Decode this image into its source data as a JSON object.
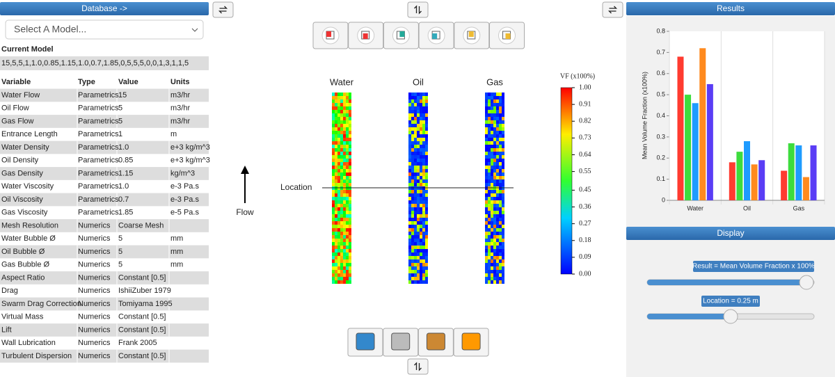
{
  "left": {
    "header": "Database ->",
    "select": "Select A Model...",
    "current_model_label": "Current Model",
    "current_model": "15,5,5,1,1.0,0.85,1.15,1.0,0.7,1.85,0,5,5,5,0,0,1,3,1,1,5"
  },
  "table": {
    "columns": [
      "Variable",
      "Type",
      "Value",
      "Units"
    ],
    "rows": [
      [
        "Water Flow",
        "Parametrics",
        "15",
        "m3/hr"
      ],
      [
        "Oil Flow",
        "Parametrics",
        "5",
        "m3/hr"
      ],
      [
        "Gas Flow",
        "Parametrics",
        "5",
        "m3/hr"
      ],
      [
        "Entrance Length",
        "Parametrics",
        "1",
        "m"
      ],
      [
        "Water Density",
        "Parametrics",
        "1.0",
        "e+3 kg/m^3"
      ],
      [
        "Oil Density",
        "Parametrics",
        "0.85",
        "e+3 kg/m^3"
      ],
      [
        "Gas Density",
        "Parametrics",
        "1.15",
        "kg/m^3"
      ],
      [
        "Water Viscosity",
        "Parametrics",
        "1.0",
        "e-3 Pa.s"
      ],
      [
        "Oil Viscosity",
        "Parametrics",
        "0.7",
        "e-3 Pa.s"
      ],
      [
        "Gas Viscosity",
        "Parametrics",
        "1.85",
        "e-5 Pa.s"
      ],
      [
        "Mesh Resolution",
        "Numerics",
        "Coarse Mesh"
      ],
      [
        "Water Bubble Ø",
        "Numerics",
        "5",
        "mm"
      ],
      [
        "Oil Bubble Ø",
        "Numerics",
        "5",
        "mm"
      ],
      [
        "Gas Bubble Ø",
        "Numerics",
        "5",
        "mm"
      ],
      [
        "Aspect Ratio",
        "Numerics",
        "Constant [0.5]"
      ],
      [
        "Drag",
        "Numerics",
        "IshiiZuber 1979"
      ],
      [
        "Swarm Drag Correction",
        "Numerics",
        "Tomiyama 1995"
      ],
      [
        "Virtual Mass",
        "Numerics",
        "Constant [0.5]"
      ],
      [
        "Lift",
        "Numerics",
        "Constant [0.5]"
      ],
      [
        "Wall Lubrication",
        "Numerics",
        "Frank 2005"
      ],
      [
        "Turbulent Dispersion",
        "Numerics",
        "Constant [0.5]"
      ]
    ]
  },
  "viewer": {
    "phases": [
      "Water",
      "Oil",
      "Gas"
    ],
    "location": "Location",
    "flow": "Flow"
  },
  "colorbar": {
    "title": "VF (x100%)",
    "lim": [
      0,
      1
    ],
    "ticks": [
      {
        "value": 1,
        "label": "1.00"
      },
      {
        "value": 0.91,
        "label": "0.91"
      },
      {
        "value": 0.82,
        "label": "0.82"
      },
      {
        "value": 0.73,
        "label": "0.73"
      },
      {
        "value": 0.64,
        "label": "0.64"
      },
      {
        "value": 0.55,
        "label": "0.55"
      },
      {
        "value": 0.45,
        "label": "0.45"
      },
      {
        "value": 0.36,
        "label": "0.36"
      },
      {
        "value": 0.27,
        "label": "0.27"
      },
      {
        "value": 0.18,
        "label": "0.18"
      },
      {
        "value": 0.09,
        "label": "0.09"
      },
      {
        "value": 0,
        "label": "0.00"
      }
    ]
  },
  "results": {
    "header": "Results"
  },
  "chart_data": {
    "type": "bar",
    "ylabel": "Mean Volume Fraction (x100%)",
    "categories": [
      "Water",
      "Oil",
      "Gas"
    ],
    "series": [
      {
        "color": "#ff3b30",
        "values": [
          0.68,
          0.18,
          0.14
        ]
      },
      {
        "color": "#3ddc3d",
        "values": [
          0.5,
          0.23,
          0.27
        ]
      },
      {
        "color": "#1e9bff",
        "values": [
          0.46,
          0.28,
          0.26
        ]
      },
      {
        "color": "#ff8a1e",
        "values": [
          0.72,
          0.17,
          0.11
        ]
      },
      {
        "color": "#5a3df5",
        "values": [
          0.55,
          0.19,
          0.26
        ]
      }
    ],
    "ylim": [
      0,
      0.8
    ],
    "yticks": [
      0,
      0.1,
      0.2,
      0.3,
      0.4,
      0.5,
      0.6,
      0.7,
      0.8
    ]
  },
  "display": {
    "header": "Display",
    "sliders": [
      "Result = Mean Volume Fraction x 100%",
      "Location = 0.25 m"
    ]
  }
}
